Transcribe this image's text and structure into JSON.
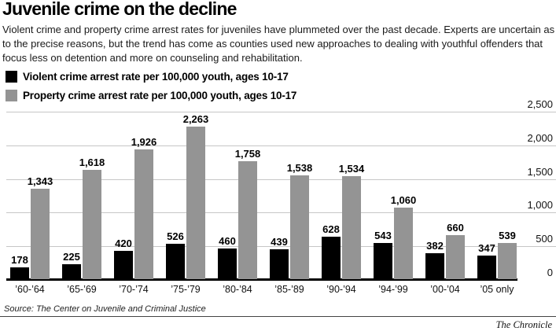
{
  "title": "Juvenile crime on the decline",
  "description": "Violent crime and property crime arrest rates for juveniles have plummeted over the past decade. Experts are uncertain as to the precise reasons, but the trend has come as counties used new approaches to dealing with youthful offenders that focus less on detention and more on counseling and rehabilitation.",
  "legend": {
    "items": [
      {
        "label": "Violent crime arrest rate per 100,000 youth, ages 10-17",
        "color": "#000000"
      },
      {
        "label": "Property crime arrest rate per 100,000 youth, ages 10-17",
        "color": "#949494"
      }
    ]
  },
  "chart_data": {
    "type": "bar",
    "title": "Juvenile crime arrest rates per 100,000 youth, ages 10-17",
    "categories": [
      "’60-’64",
      "’65-’69",
      "’70-’74",
      "’75-’79",
      "’80-’84",
      "’85-’89",
      "’90-’94",
      "’94-’99",
      "’00-’04",
      "’05 only"
    ],
    "series": [
      {
        "name": "Violent crime arrest rate per 100,000 youth, ages 10-17",
        "color": "#000000",
        "values": [
          178,
          225,
          420,
          526,
          460,
          439,
          628,
          543,
          382,
          347
        ]
      },
      {
        "name": "Property crime arrest rate per 100,000 youth, ages 10-17",
        "color": "#949494",
        "values": [
          1343,
          1618,
          1926,
          2263,
          1758,
          1538,
          1534,
          1060,
          660,
          539
        ]
      }
    ],
    "ylim": [
      0,
      2500
    ],
    "yticks": [
      {
        "value": 0,
        "label": "0"
      },
      {
        "value": 500,
        "label": "500"
      },
      {
        "value": 1000,
        "label": "1,000"
      },
      {
        "value": 1500,
        "label": "1,500"
      },
      {
        "value": 2000,
        "label": "2,000"
      },
      {
        "value": 2500,
        "label": "2,500"
      }
    ],
    "grid": "horizontal",
    "gridline_color": "#c6c6c6",
    "legend_position": "top-left",
    "value_labels": true,
    "xlabel": "",
    "ylabel": ""
  },
  "source": "Source: The Center on Juvenile and Criminal Justice",
  "credit": "The Chronicle"
}
